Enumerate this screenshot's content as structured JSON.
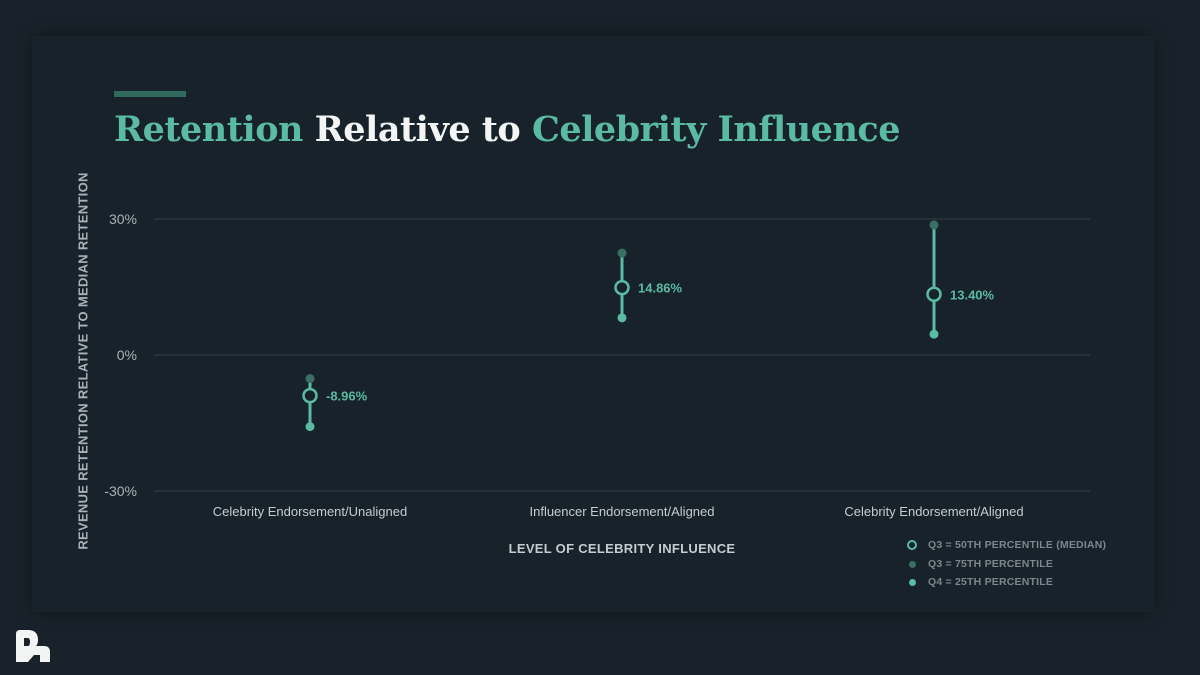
{
  "title": {
    "part1": "Retention",
    "part2": " Relative to ",
    "part3": "Celebrity Influence"
  },
  "colors": {
    "accent": "#5bbaa3",
    "q75": "#3a6f62",
    "q25": "#5bbaa3",
    "grid": "#334047",
    "background": "#17222a"
  },
  "logo_icon": "brand-logo-icon",
  "chart_data": {
    "type": "dot-range",
    "xlabel": "LEVEL OF CELEBRITY INFLUENCE",
    "ylabel": "REVENUE RETENTION RELATIVE TO MEDIAN RETENTION",
    "ylim": [
      -30,
      30
    ],
    "yticks": [
      30,
      0,
      -30
    ],
    "ytick_labels": [
      "30%",
      "0%",
      "-30%"
    ],
    "grid": true,
    "legend_placement": "bottom-right",
    "categories": [
      "Celebrity Endorsement/Unaligned",
      "Influencer Endorsement/Aligned",
      "Celebrity Endorsement/Aligned"
    ],
    "series": [
      {
        "name": "Q3 = 50TH PERCENTILE (MEDIAN)",
        "marker": "ring",
        "values": [
          -8.96,
          14.86,
          13.4
        ]
      },
      {
        "name": "Q3 = 75TH PERCENTILE",
        "marker": "dark-dot",
        "values": [
          -5.2,
          22.5,
          28.7
        ]
      },
      {
        "name": "Q4 = 25TH PERCENTILE",
        "marker": "light-dot",
        "values": [
          -15.8,
          8.2,
          4.6
        ]
      }
    ],
    "data_labels": [
      "-8.96%",
      "14.86%",
      "13.40%"
    ]
  }
}
